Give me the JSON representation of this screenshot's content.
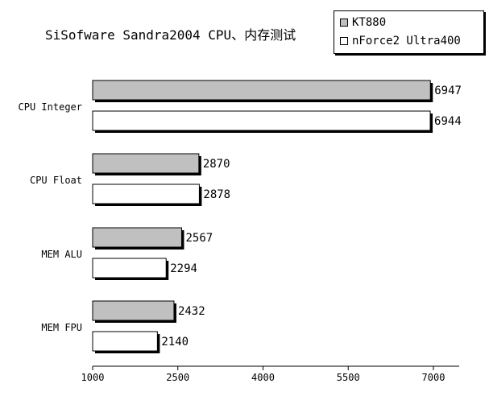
{
  "chart_data": {
    "type": "bar",
    "orientation": "horizontal",
    "title": "SiSofware Sandra2004 CPU、内存测试",
    "categories": [
      "CPU Integer",
      "CPU Float",
      "MEM ALU",
      "MEM FPU"
    ],
    "series": [
      {
        "name": "KT880",
        "values": [
          6947,
          2870,
          2567,
          2432
        ],
        "color": "#c0c0c0"
      },
      {
        "name": "nForce2 Ultra400",
        "values": [
          6944,
          2878,
          2294,
          2140
        ],
        "color": "#ffffff"
      }
    ],
    "xlim": [
      1000,
      7500
    ],
    "xticks": [
      1000,
      2500,
      4000,
      5500,
      7000
    ],
    "grid": false,
    "legend_position": "top-right",
    "data_labels": true
  }
}
